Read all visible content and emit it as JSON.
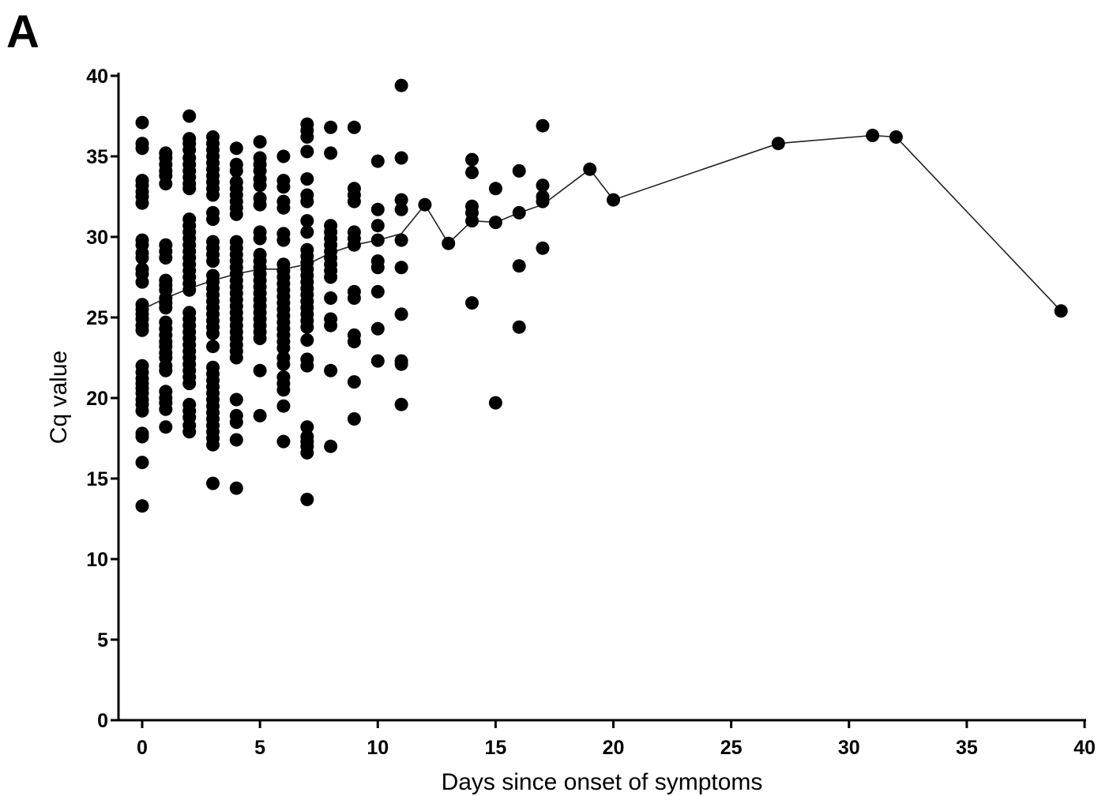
{
  "chart_data": {
    "type": "scatter",
    "panel_label": "A",
    "xlabel": "Days since onset of symptoms",
    "ylabel": "Cq value",
    "xlim": [
      0,
      40
    ],
    "ylim": [
      0,
      40
    ],
    "x_ticks": [
      0,
      5,
      10,
      15,
      20,
      25,
      30,
      35,
      40
    ],
    "y_ticks": [
      0,
      5,
      10,
      15,
      20,
      25,
      30,
      35,
      40
    ],
    "grid": false,
    "legend": "none",
    "marker_color": "#000000",
    "points": [
      {
        "x": 0,
        "y": [
          37.1,
          35.8,
          35.5,
          33.5,
          33.2,
          32.8,
          32.5,
          32.1,
          29.8,
          29.5,
          29.0,
          28.7,
          28.0,
          27.7,
          27.2,
          25.8,
          25.5,
          25.2,
          24.9,
          24.5,
          24.2,
          22.0,
          21.6,
          21.2,
          20.9,
          20.6,
          20.3,
          19.9,
          19.6,
          19.2,
          17.8,
          17.6,
          16.0,
          13.3
        ]
      },
      {
        "x": 1,
        "y": [
          35.2,
          34.9,
          34.5,
          34.1,
          33.8,
          33.3,
          29.5,
          29.1,
          28.7,
          27.3,
          27.0,
          26.7,
          26.2,
          25.9,
          25.6,
          24.7,
          24.3,
          23.9,
          23.5,
          23.2,
          22.8,
          22.5,
          22.0,
          21.7,
          20.4,
          20.0,
          19.7,
          19.3,
          18.2
        ]
      },
      {
        "x": 2,
        "y": [
          37.5,
          36.1,
          35.8,
          35.4,
          34.9,
          34.5,
          34.1,
          33.7,
          33.3,
          33.0,
          31.1,
          30.7,
          30.3,
          29.9,
          29.5,
          29.1,
          28.7,
          28.3,
          27.9,
          27.5,
          27.1,
          26.7,
          25.3,
          24.9,
          24.5,
          24.1,
          23.7,
          23.3,
          22.9,
          22.5,
          22.1,
          21.7,
          21.3,
          20.9,
          19.6,
          19.2,
          18.8,
          18.3,
          17.9
        ]
      },
      {
        "x": 3,
        "y": [
          36.2,
          35.8,
          35.4,
          35.0,
          34.6,
          34.2,
          33.8,
          33.4,
          33.0,
          32.6,
          31.5,
          31.1,
          29.7,
          29.3,
          28.9,
          28.5,
          27.6,
          27.2,
          26.8,
          26.4,
          26.0,
          25.6,
          25.2,
          24.8,
          24.4,
          24.0,
          23.2,
          21.9,
          21.5,
          21.1,
          20.7,
          20.3,
          19.9,
          19.5,
          19.1,
          18.7,
          18.3,
          17.9,
          17.5,
          17.1,
          14.7
        ]
      },
      {
        "x": 4,
        "y": [
          35.5,
          34.5,
          34.1,
          33.4,
          33.0,
          32.6,
          32.2,
          31.8,
          31.4,
          29.7,
          29.3,
          28.9,
          28.5,
          28.1,
          27.7,
          27.3,
          26.9,
          26.5,
          26.1,
          25.7,
          25.3,
          24.9,
          24.5,
          24.1,
          23.7,
          23.3,
          22.9,
          22.5,
          19.9,
          18.9,
          18.5,
          17.4,
          14.4
        ]
      },
      {
        "x": 5,
        "y": [
          35.9,
          34.9,
          34.5,
          34.1,
          33.6,
          33.2,
          32.4,
          32.0,
          30.3,
          29.9,
          28.9,
          28.5,
          28.1,
          27.7,
          27.3,
          26.9,
          26.5,
          26.1,
          25.7,
          25.3,
          24.9,
          24.5,
          24.1,
          23.7,
          21.7,
          18.9
        ]
      },
      {
        "x": 6,
        "y": [
          35.0,
          33.5,
          33.1,
          32.2,
          31.8,
          30.2,
          29.8,
          28.3,
          27.9,
          27.5,
          27.1,
          26.7,
          26.3,
          25.9,
          25.5,
          25.1,
          24.7,
          24.3,
          23.9,
          23.5,
          23.1,
          22.5,
          22.1,
          21.3,
          20.9,
          20.5,
          19.5,
          17.3
        ]
      },
      {
        "x": 7,
        "y": [
          37.0,
          36.6,
          36.2,
          35.3,
          33.6,
          32.6,
          32.2,
          31.0,
          30.3,
          29.2,
          28.8,
          28.4,
          28.0,
          27.6,
          27.2,
          26.8,
          26.4,
          26.0,
          25.6,
          25.2,
          24.8,
          24.4,
          23.6,
          22.4,
          22.0,
          18.2,
          17.6,
          17.3,
          17.0,
          16.6,
          13.7
        ]
      },
      {
        "x": 8,
        "y": [
          36.8,
          35.2,
          30.7,
          30.3,
          29.9,
          29.5,
          29.1,
          28.7,
          28.3,
          27.9,
          27.5,
          26.2,
          24.9,
          24.5,
          21.7,
          17.0
        ]
      },
      {
        "x": 9,
        "y": [
          36.8,
          33.0,
          32.6,
          32.2,
          30.3,
          29.9,
          29.5,
          26.6,
          26.2,
          23.9,
          23.5,
          21.0,
          18.7
        ]
      },
      {
        "x": 10,
        "y": [
          34.7,
          31.7,
          30.7,
          29.8,
          28.5,
          28.1,
          26.6,
          24.3,
          22.3
        ]
      },
      {
        "x": 11,
        "y": [
          39.4,
          34.9,
          32.3,
          31.7,
          29.8,
          28.1,
          25.2,
          22.3,
          22.1,
          19.6
        ]
      },
      {
        "x": 12,
        "y": [
          32.0
        ]
      },
      {
        "x": 13,
        "y": [
          29.6
        ]
      },
      {
        "x": 14,
        "y": [
          34.8,
          34.0,
          31.9,
          31.5,
          31.0,
          25.9
        ]
      },
      {
        "x": 15,
        "y": [
          33.0,
          30.9,
          19.7
        ]
      },
      {
        "x": 16,
        "y": [
          34.1,
          31.5,
          28.2,
          24.4
        ]
      },
      {
        "x": 17,
        "y": [
          36.9,
          33.2,
          32.5,
          32.2,
          29.3
        ]
      },
      {
        "x": 19,
        "y": [
          34.2
        ]
      },
      {
        "x": 20,
        "y": [
          32.3
        ]
      },
      {
        "x": 27,
        "y": [
          35.8
        ]
      },
      {
        "x": 31,
        "y": [
          36.3
        ]
      },
      {
        "x": 32,
        "y": [
          36.2
        ]
      },
      {
        "x": 39,
        "y": [
          25.4
        ]
      }
    ],
    "trend_line": {
      "x": [
        0,
        1,
        2,
        3,
        4,
        5,
        6,
        7,
        8,
        9,
        10,
        11,
        12,
        13,
        14,
        15,
        16,
        17,
        19,
        20,
        27,
        31,
        32,
        39
      ],
      "y": [
        25.5,
        26.2,
        26.8,
        27.3,
        27.7,
        28.0,
        28.0,
        28.3,
        29.0,
        29.5,
        29.8,
        30.2,
        32.0,
        29.6,
        31.0,
        30.9,
        31.5,
        32.0,
        34.2,
        32.3,
        35.8,
        36.3,
        36.2,
        25.4
      ]
    }
  }
}
